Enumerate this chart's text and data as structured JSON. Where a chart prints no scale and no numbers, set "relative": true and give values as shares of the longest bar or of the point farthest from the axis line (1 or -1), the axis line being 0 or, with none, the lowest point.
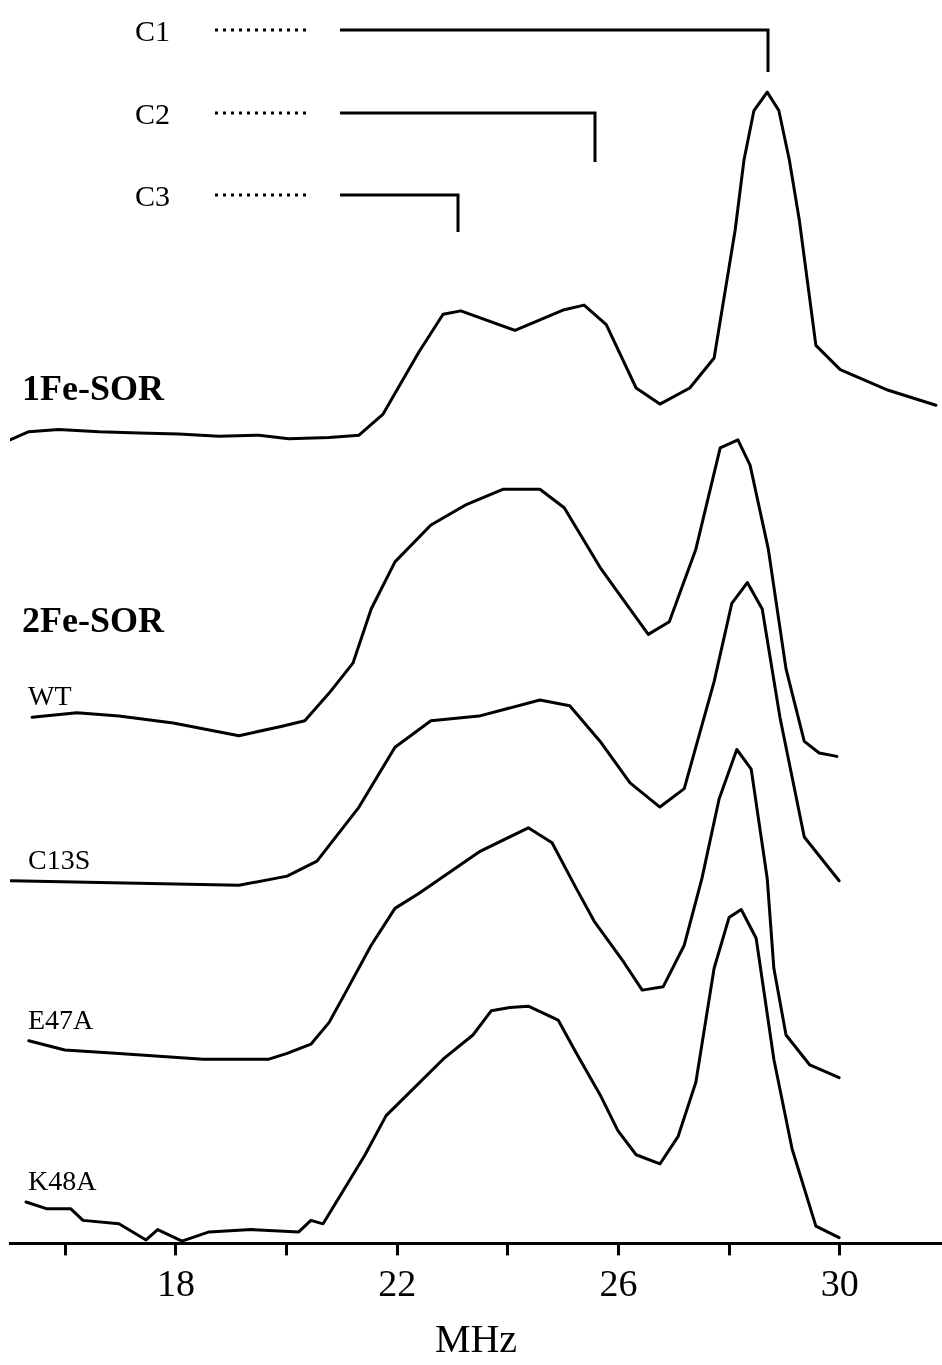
{
  "chart_data": {
    "type": "line",
    "xlabel": "MHz",
    "xlim": [
      15,
      31.85
    ],
    "xticks": [
      {
        "value": 16,
        "label": null
      },
      18,
      {
        "value": 20,
        "label": null
      },
      22,
      {
        "value": 24,
        "label": null
      },
      26,
      {
        "value": 28,
        "label": null
      },
      30
    ],
    "relative": true,
    "marker": "none",
    "line_style": "solid",
    "annotations": [
      "C1",
      "C2",
      "C3",
      "2Fe-SOR"
    ],
    "series": [
      {
        "name": "1Fe-SOR",
        "color": "#000000",
        "x": [
          15.0,
          15.34,
          15.88,
          16.61,
          17.33,
          18.05,
          18.78,
          19.5,
          20.04,
          20.77,
          21.31,
          21.74,
          22.39,
          22.83,
          23.15,
          24.13,
          25.02,
          25.38,
          25.78,
          26.32,
          26.75,
          27.29,
          27.73,
          28.11,
          28.27,
          28.45,
          28.69,
          28.9,
          29.09,
          29.27,
          29.57,
          30.01,
          30.88,
          31.74
        ],
        "values": [
          0.698,
          0.705,
          0.707,
          0.705,
          0.704,
          0.703,
          0.701,
          0.702,
          0.699,
          0.7,
          0.702,
          0.72,
          0.774,
          0.807,
          0.81,
          0.793,
          0.811,
          0.815,
          0.798,
          0.743,
          0.729,
          0.743,
          0.769,
          0.88,
          0.941,
          0.984,
          1.0,
          0.984,
          0.941,
          0.889,
          0.78,
          0.759,
          0.741,
          0.728
        ]
      },
      {
        "name": "WT",
        "color": "#000000",
        "x": [
          15.4,
          16.21,
          16.97,
          17.95,
          19.14,
          19.9,
          20.33,
          20.77,
          21.2,
          21.53,
          21.96,
          22.61,
          23.26,
          23.91,
          24.58,
          25.02,
          25.67,
          26.21,
          26.54,
          26.92,
          27.4,
          27.84,
          28.16,
          28.38,
          28.71,
          29.03,
          29.36,
          29.63,
          29.95
        ],
        "values": [
          0.457,
          0.461,
          0.458,
          0.452,
          0.441,
          0.449,
          0.454,
          0.478,
          0.504,
          0.551,
          0.592,
          0.624,
          0.642,
          0.655,
          0.655,
          0.639,
          0.587,
          0.551,
          0.529,
          0.54,
          0.603,
          0.691,
          0.698,
          0.676,
          0.603,
          0.499,
          0.436,
          0.426,
          0.423
        ]
      },
      {
        "name": "C13S",
        "color": "#000000",
        "x": [
          15.02,
          19.14,
          20.01,
          20.55,
          21.31,
          21.96,
          22.61,
          23.48,
          24.58,
          25.12,
          25.67,
          26.21,
          26.75,
          27.19,
          27.73,
          28.05,
          28.33,
          28.6,
          28.92,
          29.36,
          29.99
        ],
        "values": [
          0.315,
          0.311,
          0.319,
          0.332,
          0.379,
          0.431,
          0.454,
          0.458,
          0.472,
          0.467,
          0.436,
          0.4,
          0.379,
          0.395,
          0.488,
          0.556,
          0.574,
          0.551,
          0.457,
          0.353,
          0.315
        ]
      },
      {
        "name": "E47A",
        "color": "#000000",
        "x": [
          15.34,
          15.99,
          16.97,
          18.49,
          19.68,
          20.01,
          20.44,
          20.77,
          21.09,
          21.53,
          21.96,
          22.39,
          23.48,
          24.37,
          24.8,
          25.23,
          25.56,
          26.1,
          26.43,
          26.81,
          27.19,
          27.51,
          27.82,
          28.14,
          28.4,
          28.69,
          28.81,
          29.03,
          29.46,
          29.99
        ],
        "values": [
          0.176,
          0.168,
          0.165,
          0.16,
          0.16,
          0.165,
          0.173,
          0.192,
          0.22,
          0.259,
          0.291,
          0.304,
          0.34,
          0.361,
          0.348,
          0.309,
          0.28,
          0.244,
          0.22,
          0.223,
          0.259,
          0.317,
          0.386,
          0.429,
          0.412,
          0.317,
          0.239,
          0.181,
          0.155,
          0.144
        ]
      },
      {
        "name": "K48A",
        "color": "#000000",
        "x": [
          15.29,
          15.67,
          16.1,
          16.32,
          16.97,
          17.46,
          17.67,
          18.11,
          18.6,
          19.36,
          20.22,
          20.44,
          20.66,
          21.09,
          21.42,
          21.8,
          22.18,
          22.83,
          23.37,
          23.7,
          24.04,
          24.37,
          24.91,
          25.23,
          25.67,
          25.99,
          26.32,
          26.75,
          27.08,
          27.4,
          27.73,
          28.0,
          28.22,
          28.49,
          28.81,
          29.14,
          29.57,
          29.99
        ],
        "values": [
          0.036,
          0.03,
          0.03,
          0.02,
          0.017,
          0.003,
          0.012,
          0.002,
          0.01,
          0.012,
          0.01,
          0.02,
          0.017,
          0.051,
          0.077,
          0.111,
          0.129,
          0.16,
          0.181,
          0.202,
          0.205,
          0.206,
          0.194,
          0.166,
          0.129,
          0.098,
          0.077,
          0.069,
          0.093,
          0.14,
          0.239,
          0.283,
          0.29,
          0.265,
          0.16,
          0.082,
          0.015,
          0.005
        ]
      }
    ]
  }
}
